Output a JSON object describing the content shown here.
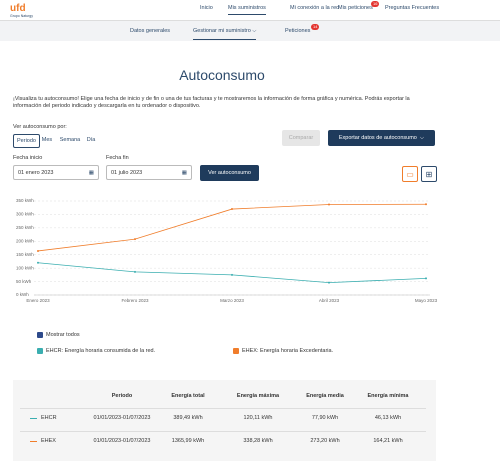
{
  "header": {
    "logo": "ufd",
    "logo_sub": "Grupo Naturgy",
    "nav": [
      "Inicio",
      "Mis suministros",
      "Mi conexión a la red",
      "Mis peticiones",
      "Preguntas Frecuentes"
    ],
    "nav_badge": "16"
  },
  "subnav": {
    "items": [
      "Datos generales",
      "Gestionar mi suministro",
      "Peticiones"
    ],
    "badge": "14"
  },
  "page": {
    "title": "Autoconsumo",
    "intro": "¡Visualiza tu autoconsumo! Elige una fecha de inicio y de fin o una de tus facturas y te mostraremos la información de forma gráfica y numérica. Podrás exportar la información del periodo indicado y descargarla en tu ordenador o dispositivo."
  },
  "controls": {
    "view_label": "Ver autoconsumo por:",
    "tabs": [
      "Periodo",
      "Mes",
      "Semana",
      "Día"
    ],
    "compare": "Comparar",
    "export": "Exportar datos de autoconsumo",
    "start_label": "Fecha inicio",
    "start_value": "01 enero 2023",
    "end_label": "Fecha fin",
    "end_value": "01 julio 2023",
    "submit": "Ver autoconsumo"
  },
  "chart_data": {
    "type": "line",
    "categories": [
      "Enero 2023",
      "Febrero 2023",
      "Marzo 2023",
      "Abril 2023",
      "Mayo 2023"
    ],
    "series": [
      {
        "name": "EHCR: Energía horaria consumida de la red.",
        "color": "#3aaeb0",
        "values": [
          120,
          86,
          75,
          46,
          62
        ]
      },
      {
        "name": "EHEX: Energía horaria Excedentaria.",
        "color": "#f07d2b",
        "values": [
          164,
          208,
          320,
          337,
          338
        ]
      }
    ],
    "ylim": [
      0,
      350
    ],
    "yticks": [
      {
        "value": 0,
        "label": "0 kWh"
      },
      {
        "value": 50,
        "label": "50 kWh"
      },
      {
        "value": 100,
        "label": "100 kWh"
      },
      {
        "value": 150,
        "label": "150 kWh"
      },
      {
        "value": 200,
        "label": "200 kWh"
      },
      {
        "value": 250,
        "label": "250 kWh"
      },
      {
        "value": 300,
        "label": "300 kWh"
      },
      {
        "value": 350,
        "label": "350 kWh"
      }
    ],
    "grid": true,
    "show_all": "Mostrar todos"
  },
  "table": {
    "headers": [
      "Periodo",
      "Energía total",
      "Energía máxima",
      "Energía media",
      "Energía mínima"
    ],
    "rows": [
      [
        "EHCR",
        "01/01/2023-01/07/2023",
        "389,49 kWh",
        "120,11 kWh",
        "77,90 kWh",
        "46,13 kWh"
      ],
      [
        "EHEX",
        "01/01/2023-01/07/2023",
        "1365,99 kWh",
        "338,28 kWh",
        "273,20 kWh",
        "164,21 kWh"
      ]
    ]
  }
}
